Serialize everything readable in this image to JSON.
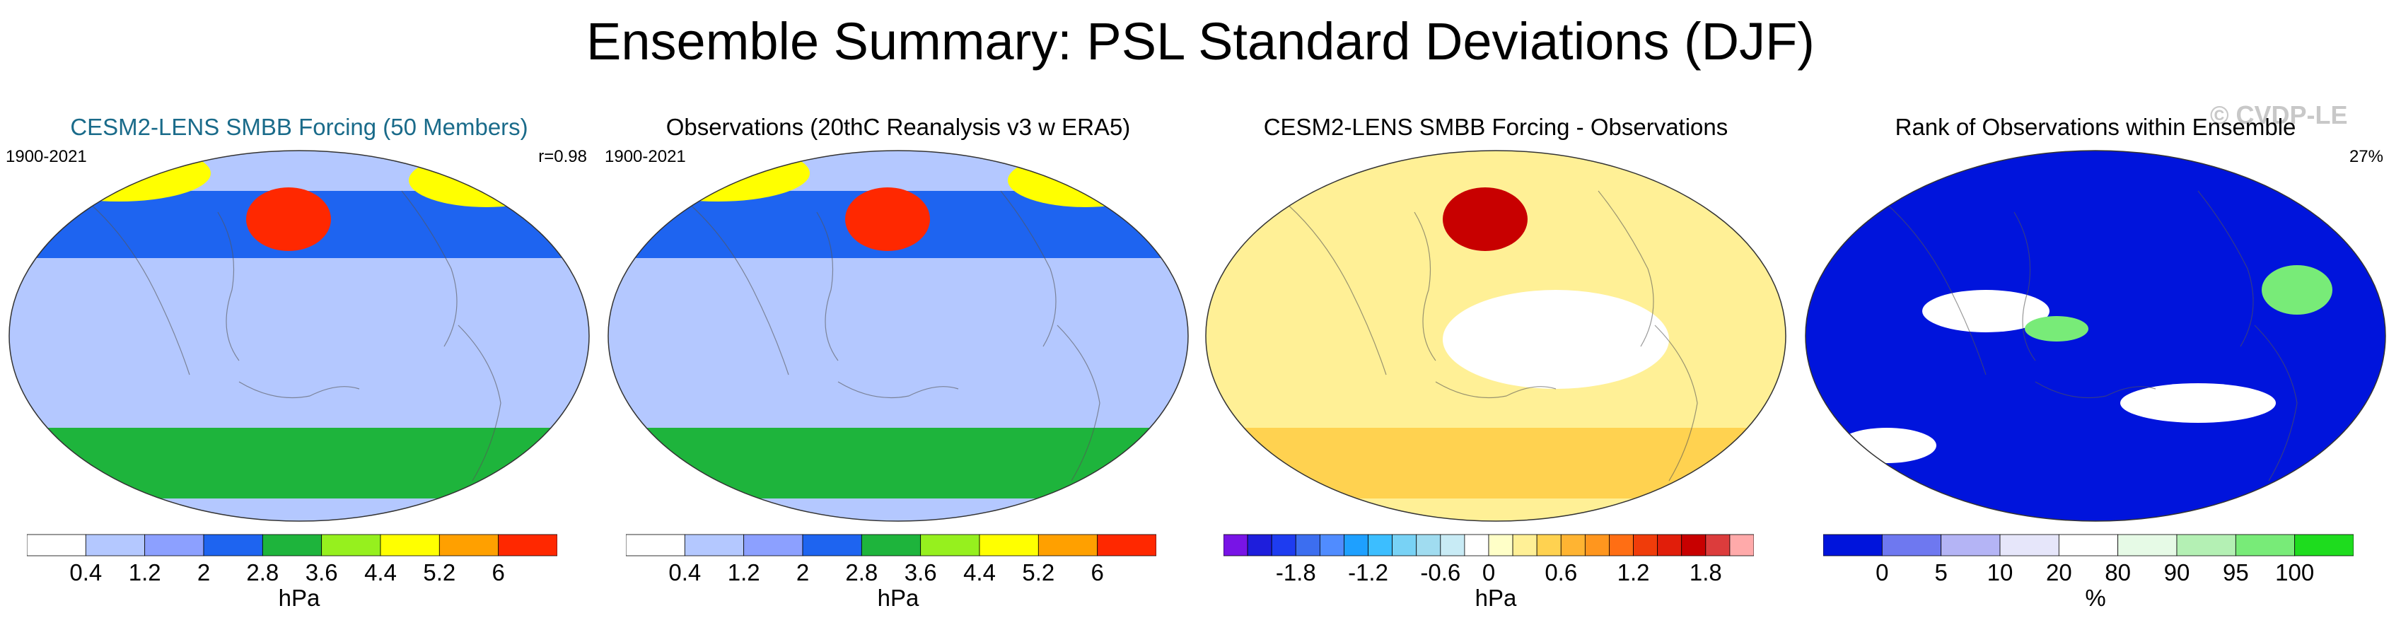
{
  "title": "Ensemble Summary: PSL Standard Deviations (DJF)",
  "watermark": "© CVDP-LE",
  "chart_data": [
    {
      "type": "heatmap",
      "projection": "robinson-like global map",
      "title": "CESM2-LENS SMBB Forcing (50 Members)",
      "title_color": "#1a6b8a",
      "period": "1900-2021",
      "stat": "r=0.98",
      "units": "hPa",
      "bins": [
        {
          "max": 0.4,
          "color": "#ffffff"
        },
        {
          "max": 1.2,
          "color": "#b4c8ff"
        },
        {
          "max": 2.0,
          "color": "#8ca0ff"
        },
        {
          "max": 2.8,
          "color": "#1e64f0"
        },
        {
          "max": 3.6,
          "color": "#1eb43c"
        },
        {
          "max": 4.4,
          "color": "#96f01e"
        },
        {
          "max": 5.2,
          "color": "#ffff00"
        },
        {
          "max": 6.0,
          "color": "#ffa000"
        },
        {
          "max": 7.0,
          "color": "#ff2800"
        }
      ],
      "ticks": [
        "0.4",
        "1.2",
        "2",
        "2.8",
        "3.6",
        "4.4",
        "5.2",
        "6"
      ],
      "regions": [
        {
          "area": "tropics / subtropics",
          "value": 0.9
        },
        {
          "area": "northern midlatitudes",
          "value": 2.4
        },
        {
          "area": "north pacific",
          "value": 6.5
        },
        {
          "area": "north atlantic / arctic",
          "value": 5.0
        },
        {
          "area": "southern ocean",
          "value": 3.2
        }
      ]
    },
    {
      "type": "heatmap",
      "projection": "robinson-like global map",
      "title": "Observations (20thC Reanalysis v3 w ERA5)",
      "title_color": "#000000",
      "period": "1900-2021",
      "stat": "",
      "units": "hPa",
      "bins": [
        {
          "max": 0.4,
          "color": "#ffffff"
        },
        {
          "max": 1.2,
          "color": "#b4c8ff"
        },
        {
          "max": 2.0,
          "color": "#8ca0ff"
        },
        {
          "max": 2.8,
          "color": "#1e64f0"
        },
        {
          "max": 3.6,
          "color": "#1eb43c"
        },
        {
          "max": 4.4,
          "color": "#96f01e"
        },
        {
          "max": 5.2,
          "color": "#ffff00"
        },
        {
          "max": 6.0,
          "color": "#ffa000"
        },
        {
          "max": 7.0,
          "color": "#ff2800"
        }
      ],
      "ticks": [
        "0.4",
        "1.2",
        "2",
        "2.8",
        "3.6",
        "4.4",
        "5.2",
        "6"
      ],
      "regions": [
        {
          "area": "tropics / subtropics",
          "value": 0.9
        },
        {
          "area": "northern midlatitudes",
          "value": 2.2
        },
        {
          "area": "north pacific",
          "value": 6.2
        },
        {
          "area": "north atlantic / arctic",
          "value": 4.8
        },
        {
          "area": "southern ocean",
          "value": 2.9
        }
      ]
    },
    {
      "type": "heatmap",
      "projection": "robinson-like global map",
      "title": "CESM2-LENS SMBB Forcing - Observations",
      "title_color": "#000000",
      "period": "",
      "stat": "",
      "units": "hPa",
      "bins": [
        {
          "max": -2.2,
          "color": "#7814e6"
        },
        {
          "max": -2.0,
          "color": "#1e1edc"
        },
        {
          "max": -1.8,
          "color": "#1e3cf0"
        },
        {
          "max": -1.6,
          "color": "#3c6ef0"
        },
        {
          "max": -1.4,
          "color": "#508cff"
        },
        {
          "max": -1.2,
          "color": "#1ea0ff"
        },
        {
          "max": -1.0,
          "color": "#3cbeff"
        },
        {
          "max": -0.8,
          "color": "#78d2f5"
        },
        {
          "max": -0.6,
          "color": "#a0dcf0"
        },
        {
          "max": -0.4,
          "color": "#c8ebf5"
        },
        {
          "max": 0.0,
          "color": "#ffffff"
        },
        {
          "max": 0.2,
          "color": "#ffffc8"
        },
        {
          "max": 0.4,
          "color": "#fff096"
        },
        {
          "max": 0.6,
          "color": "#ffd250"
        },
        {
          "max": 0.8,
          "color": "#ffb432"
        },
        {
          "max": 1.0,
          "color": "#ff961e"
        },
        {
          "max": 1.2,
          "color": "#ff6e14"
        },
        {
          "max": 1.4,
          "color": "#f03c0a"
        },
        {
          "max": 1.6,
          "color": "#e11e0a"
        },
        {
          "max": 1.8,
          "color": "#c80000"
        },
        {
          "max": 2.0,
          "color": "#dc3c3c"
        },
        {
          "max": 2.2,
          "color": "#ffaaaa"
        }
      ],
      "ticks": [
        "-1.8",
        "-1.2",
        "-0.6",
        "0",
        "0.6",
        "1.2",
        "1.8"
      ],
      "regions": [
        {
          "area": "global mean",
          "value": 0.4
        },
        {
          "area": "north pacific",
          "value": 1.8
        },
        {
          "area": "subtropical pacific",
          "value": -0.3
        },
        {
          "area": "southern ocean",
          "value": 0.6
        }
      ]
    },
    {
      "type": "heatmap",
      "projection": "robinson-like global map",
      "title": "Rank of Observations within Ensemble",
      "title_color": "#000000",
      "period": "",
      "stat": "27%",
      "units": "%",
      "bins": [
        {
          "max": 0,
          "color": "#0014dc"
        },
        {
          "max": 5,
          "color": "#6e78f0"
        },
        {
          "max": 10,
          "color": "#b4b4f5"
        },
        {
          "max": 20,
          "color": "#e6e6fa"
        },
        {
          "max": 80,
          "color": "#ffffff"
        },
        {
          "max": 90,
          "color": "#e6fae6"
        },
        {
          "max": 95,
          "color": "#b4f0b4"
        },
        {
          "max": 100,
          "color": "#78eb78"
        },
        {
          "max": 101,
          "color": "#1edc1e"
        }
      ],
      "ticks": [
        "0",
        "5",
        "10",
        "20",
        "80",
        "90",
        "95",
        "100"
      ],
      "regions": [
        {
          "area": "most of globe",
          "value": 0
        },
        {
          "area": "scattered white patches",
          "value": 50
        },
        {
          "area": "green patches",
          "value": 100
        }
      ]
    }
  ]
}
